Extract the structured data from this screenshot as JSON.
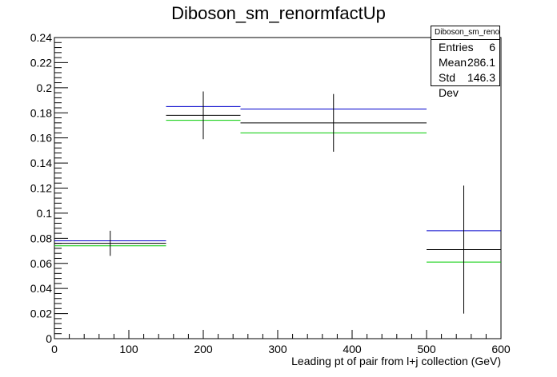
{
  "chart_data": {
    "type": "histogram",
    "title": "Diboson_sm_renormfactUp",
    "xlabel": "Leading pt of pair from l+j collection (GeV)",
    "ylabel": "",
    "xlim": [
      0,
      600
    ],
    "ylim": [
      0,
      0.24
    ],
    "xticks": [
      "0",
      "100",
      "200",
      "300",
      "400",
      "500",
      "600"
    ],
    "yticks": [
      "0",
      "0.02",
      "0.04",
      "0.06",
      "0.08",
      "0.1",
      "0.12",
      "0.14",
      "0.16",
      "0.18",
      "0.2",
      "0.22",
      "0.24"
    ],
    "bins": [
      [
        0,
        150
      ],
      [
        150,
        250
      ],
      [
        250,
        500
      ],
      [
        500,
        600
      ]
    ],
    "bin_centers": [
      75,
      200,
      375,
      550
    ],
    "series": [
      {
        "color": "#000000",
        "values": [
          0.076,
          0.178,
          0.172,
          0.071
        ],
        "errors": [
          0.01,
          0.019,
          0.023,
          0.051
        ]
      },
      {
        "color": "#0000cc",
        "values": [
          0.078,
          0.185,
          0.183,
          0.086
        ],
        "errors": [
          0,
          0,
          0,
          0
        ]
      },
      {
        "color": "#00cc00",
        "values": [
          0.074,
          0.174,
          0.164,
          0.061
        ],
        "errors": [
          0,
          0,
          0,
          0
        ]
      }
    ]
  },
  "stats": {
    "title": "Diboson_sm_renormfactUp",
    "rows": [
      {
        "label": "Entries",
        "value": "6"
      },
      {
        "label": "Mean",
        "value": "286.1"
      },
      {
        "label": "Std Dev",
        "value": "146.3"
      }
    ]
  }
}
